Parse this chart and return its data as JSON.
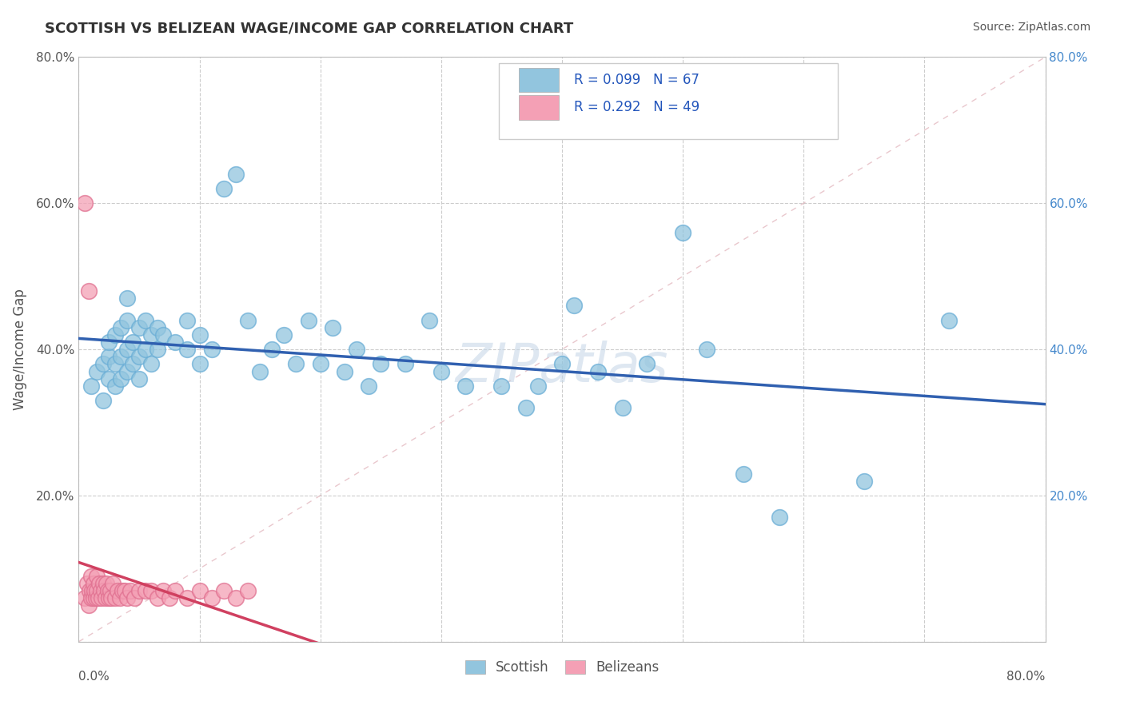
{
  "title": "SCOTTISH VS BELIZEAN WAGE/INCOME GAP CORRELATION CHART",
  "source": "Source: ZipAtlas.com",
  "ylabel": "Wage/Income Gap",
  "xmin": 0.0,
  "xmax": 0.8,
  "ymin": 0.0,
  "ymax": 0.8,
  "blue_color": "#92c5de",
  "blue_edge": "#6aaed6",
  "pink_color": "#f4a0b5",
  "pink_edge": "#e07090",
  "trend_blue": "#3060b0",
  "trend_pink": "#d04060",
  "diag_color": "#e0b0b8",
  "watermark_color": "#c8d8e8",
  "background_color": "#ffffff",
  "grid_color": "#cccccc",
  "title_color": "#333333",
  "axis_label_color": "#555555",
  "source_color": "#555555",
  "legend_text_color": "#2255bb",
  "R1": 0.099,
  "N1": 67,
  "R2": 0.292,
  "N2": 49,
  "scottish_x": [
    0.01,
    0.015,
    0.02,
    0.02,
    0.025,
    0.025,
    0.025,
    0.03,
    0.03,
    0.03,
    0.035,
    0.035,
    0.035,
    0.04,
    0.04,
    0.04,
    0.04,
    0.045,
    0.045,
    0.05,
    0.05,
    0.05,
    0.055,
    0.055,
    0.06,
    0.06,
    0.065,
    0.065,
    0.07,
    0.08,
    0.09,
    0.09,
    0.1,
    0.1,
    0.11,
    0.12,
    0.13,
    0.14,
    0.15,
    0.16,
    0.17,
    0.18,
    0.19,
    0.2,
    0.21,
    0.22,
    0.23,
    0.24,
    0.25,
    0.27,
    0.29,
    0.3,
    0.32,
    0.35,
    0.37,
    0.38,
    0.4,
    0.41,
    0.43,
    0.45,
    0.47,
    0.5,
    0.52,
    0.55,
    0.58,
    0.65,
    0.72
  ],
  "scottish_y": [
    0.35,
    0.37,
    0.33,
    0.38,
    0.36,
    0.39,
    0.41,
    0.35,
    0.38,
    0.42,
    0.36,
    0.39,
    0.43,
    0.37,
    0.4,
    0.44,
    0.47,
    0.38,
    0.41,
    0.36,
    0.39,
    0.43,
    0.4,
    0.44,
    0.38,
    0.42,
    0.4,
    0.43,
    0.42,
    0.41,
    0.4,
    0.44,
    0.38,
    0.42,
    0.4,
    0.62,
    0.64,
    0.44,
    0.37,
    0.4,
    0.42,
    0.38,
    0.44,
    0.38,
    0.43,
    0.37,
    0.4,
    0.35,
    0.38,
    0.38,
    0.44,
    0.37,
    0.35,
    0.35,
    0.32,
    0.35,
    0.38,
    0.46,
    0.37,
    0.32,
    0.38,
    0.56,
    0.4,
    0.23,
    0.17,
    0.22,
    0.44
  ],
  "belizean_x": [
    0.005,
    0.007,
    0.008,
    0.009,
    0.01,
    0.01,
    0.011,
    0.012,
    0.012,
    0.013,
    0.014,
    0.015,
    0.015,
    0.016,
    0.017,
    0.018,
    0.019,
    0.02,
    0.021,
    0.022,
    0.023,
    0.024,
    0.025,
    0.026,
    0.027,
    0.028,
    0.03,
    0.032,
    0.034,
    0.036,
    0.038,
    0.04,
    0.043,
    0.046,
    0.05,
    0.055,
    0.06,
    0.065,
    0.07,
    0.075,
    0.08,
    0.09,
    0.1,
    0.11,
    0.12,
    0.13,
    0.14,
    0.005,
    0.008
  ],
  "belizean_y": [
    0.06,
    0.08,
    0.05,
    0.07,
    0.06,
    0.09,
    0.07,
    0.06,
    0.08,
    0.07,
    0.06,
    0.07,
    0.09,
    0.06,
    0.08,
    0.07,
    0.06,
    0.08,
    0.07,
    0.06,
    0.08,
    0.07,
    0.06,
    0.07,
    0.06,
    0.08,
    0.06,
    0.07,
    0.06,
    0.07,
    0.07,
    0.06,
    0.07,
    0.06,
    0.07,
    0.07,
    0.07,
    0.06,
    0.07,
    0.06,
    0.07,
    0.06,
    0.07,
    0.06,
    0.07,
    0.06,
    0.07,
    0.6,
    0.48
  ]
}
